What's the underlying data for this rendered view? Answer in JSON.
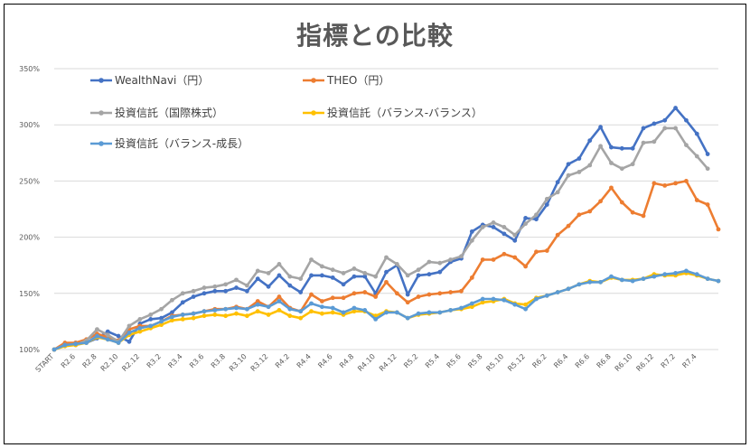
{
  "chart_data": {
    "type": "line",
    "title": "指標との比較",
    "xlabel": "",
    "ylabel": "",
    "ylim": [
      100,
      350
    ],
    "y_ticks": [
      "100%",
      "150%",
      "200%",
      "250%",
      "300%",
      "350%"
    ],
    "y_tick_values": [
      100,
      150,
      200,
      250,
      300,
      350
    ],
    "x_tick_labels": [
      "START",
      "R2.6",
      "R2.8",
      "R2.10",
      "R2.12",
      "R3.2",
      "R3.4",
      "R3.6",
      "R3.8",
      "R3.10",
      "R3.12",
      "R4.2",
      "R4.4",
      "R4.6",
      "R4.8",
      "R4.10",
      "R4.12",
      "R5.2",
      "R5.4",
      "R5.6",
      "R5.8",
      "R5.10",
      "R5.12",
      "R6.2",
      "R6.4",
      "R6.6",
      "R6.8",
      "R6.10",
      "R6.12",
      "R7.2",
      "R7.4"
    ],
    "grid": true,
    "legend_position": "top-left",
    "series": [
      {
        "name": "WealthNavi（円）",
        "color": "#4472C4",
        "values": [
          100,
          105,
          106,
          106,
          110,
          116,
          112,
          107,
          123,
          127,
          128,
          133,
          142,
          147,
          150,
          152,
          152,
          155,
          152,
          163,
          156,
          166,
          157,
          151,
          166,
          166,
          164,
          158,
          165,
          165,
          150,
          169,
          175,
          149,
          166,
          167,
          169,
          178,
          181,
          205,
          211,
          209,
          203,
          197,
          217,
          216,
          229,
          249,
          265,
          270,
          286,
          298,
          280,
          279,
          279,
          297,
          301,
          304,
          315,
          304,
          292,
          274
        ]
      },
      {
        "name": "THEO（円）",
        "color": "#ED7D31",
        "values": [
          100,
          106,
          106,
          109,
          114,
          111,
          108,
          118,
          121,
          121,
          125,
          130,
          131,
          132,
          134,
          136,
          136,
          138,
          136,
          143,
          138,
          147,
          137,
          134,
          149,
          143,
          146,
          146,
          150,
          151,
          147,
          160,
          150,
          142,
          147,
          149,
          150,
          151,
          152,
          164,
          180,
          180,
          185,
          182,
          174,
          187,
          188,
          202,
          210,
          220,
          223,
          232,
          244,
          231,
          222,
          219,
          248,
          246,
          248,
          250,
          233,
          229,
          207
        ]
      },
      {
        "name": "投資信託（国際株式）",
        "color": "#A5A5A5",
        "values": [
          100,
          104,
          104,
          108,
          118,
          113,
          107,
          121,
          127,
          131,
          136,
          144,
          150,
          152,
          155,
          156,
          158,
          162,
          157,
          170,
          168,
          176,
          165,
          163,
          180,
          174,
          171,
          168,
          172,
          168,
          165,
          182,
          176,
          166,
          171,
          178,
          177,
          180,
          183,
          197,
          209,
          213,
          209,
          202,
          212,
          220,
          234,
          240,
          255,
          258,
          264,
          281,
          266,
          261,
          265,
          284,
          285,
          297,
          297,
          282,
          272,
          261
        ]
      },
      {
        "name": "投資信託（バランス-バランス）",
        "color": "#FFC000",
        "values": [
          100,
          103,
          104,
          106,
          111,
          109,
          106,
          113,
          116,
          119,
          122,
          126,
          127,
          128,
          130,
          131,
          130,
          132,
          130,
          134,
          131,
          135,
          130,
          128,
          134,
          132,
          133,
          131,
          134,
          134,
          130,
          134,
          133,
          128,
          131,
          132,
          133,
          135,
          136,
          138,
          142,
          143,
          145,
          141,
          140,
          146,
          148,
          151,
          154,
          158,
          161,
          160,
          164,
          162,
          162,
          163,
          167,
          166,
          166,
          168,
          166,
          163,
          161
        ]
      },
      {
        "name": "投資信託（バランス-成長）",
        "color": "#5B9BD5",
        "values": [
          100,
          104,
          105,
          106,
          112,
          109,
          106,
          115,
          119,
          121,
          125,
          129,
          131,
          132,
          134,
          135,
          136,
          137,
          136,
          140,
          138,
          143,
          136,
          134,
          141,
          138,
          137,
          133,
          137,
          135,
          127,
          133,
          133,
          128,
          132,
          133,
          133,
          135,
          137,
          141,
          145,
          145,
          144,
          140,
          136,
          145,
          148,
          151,
          154,
          158,
          160,
          160,
          165,
          162,
          161,
          163,
          165,
          167,
          168,
          170,
          167,
          163,
          161
        ]
      }
    ]
  }
}
